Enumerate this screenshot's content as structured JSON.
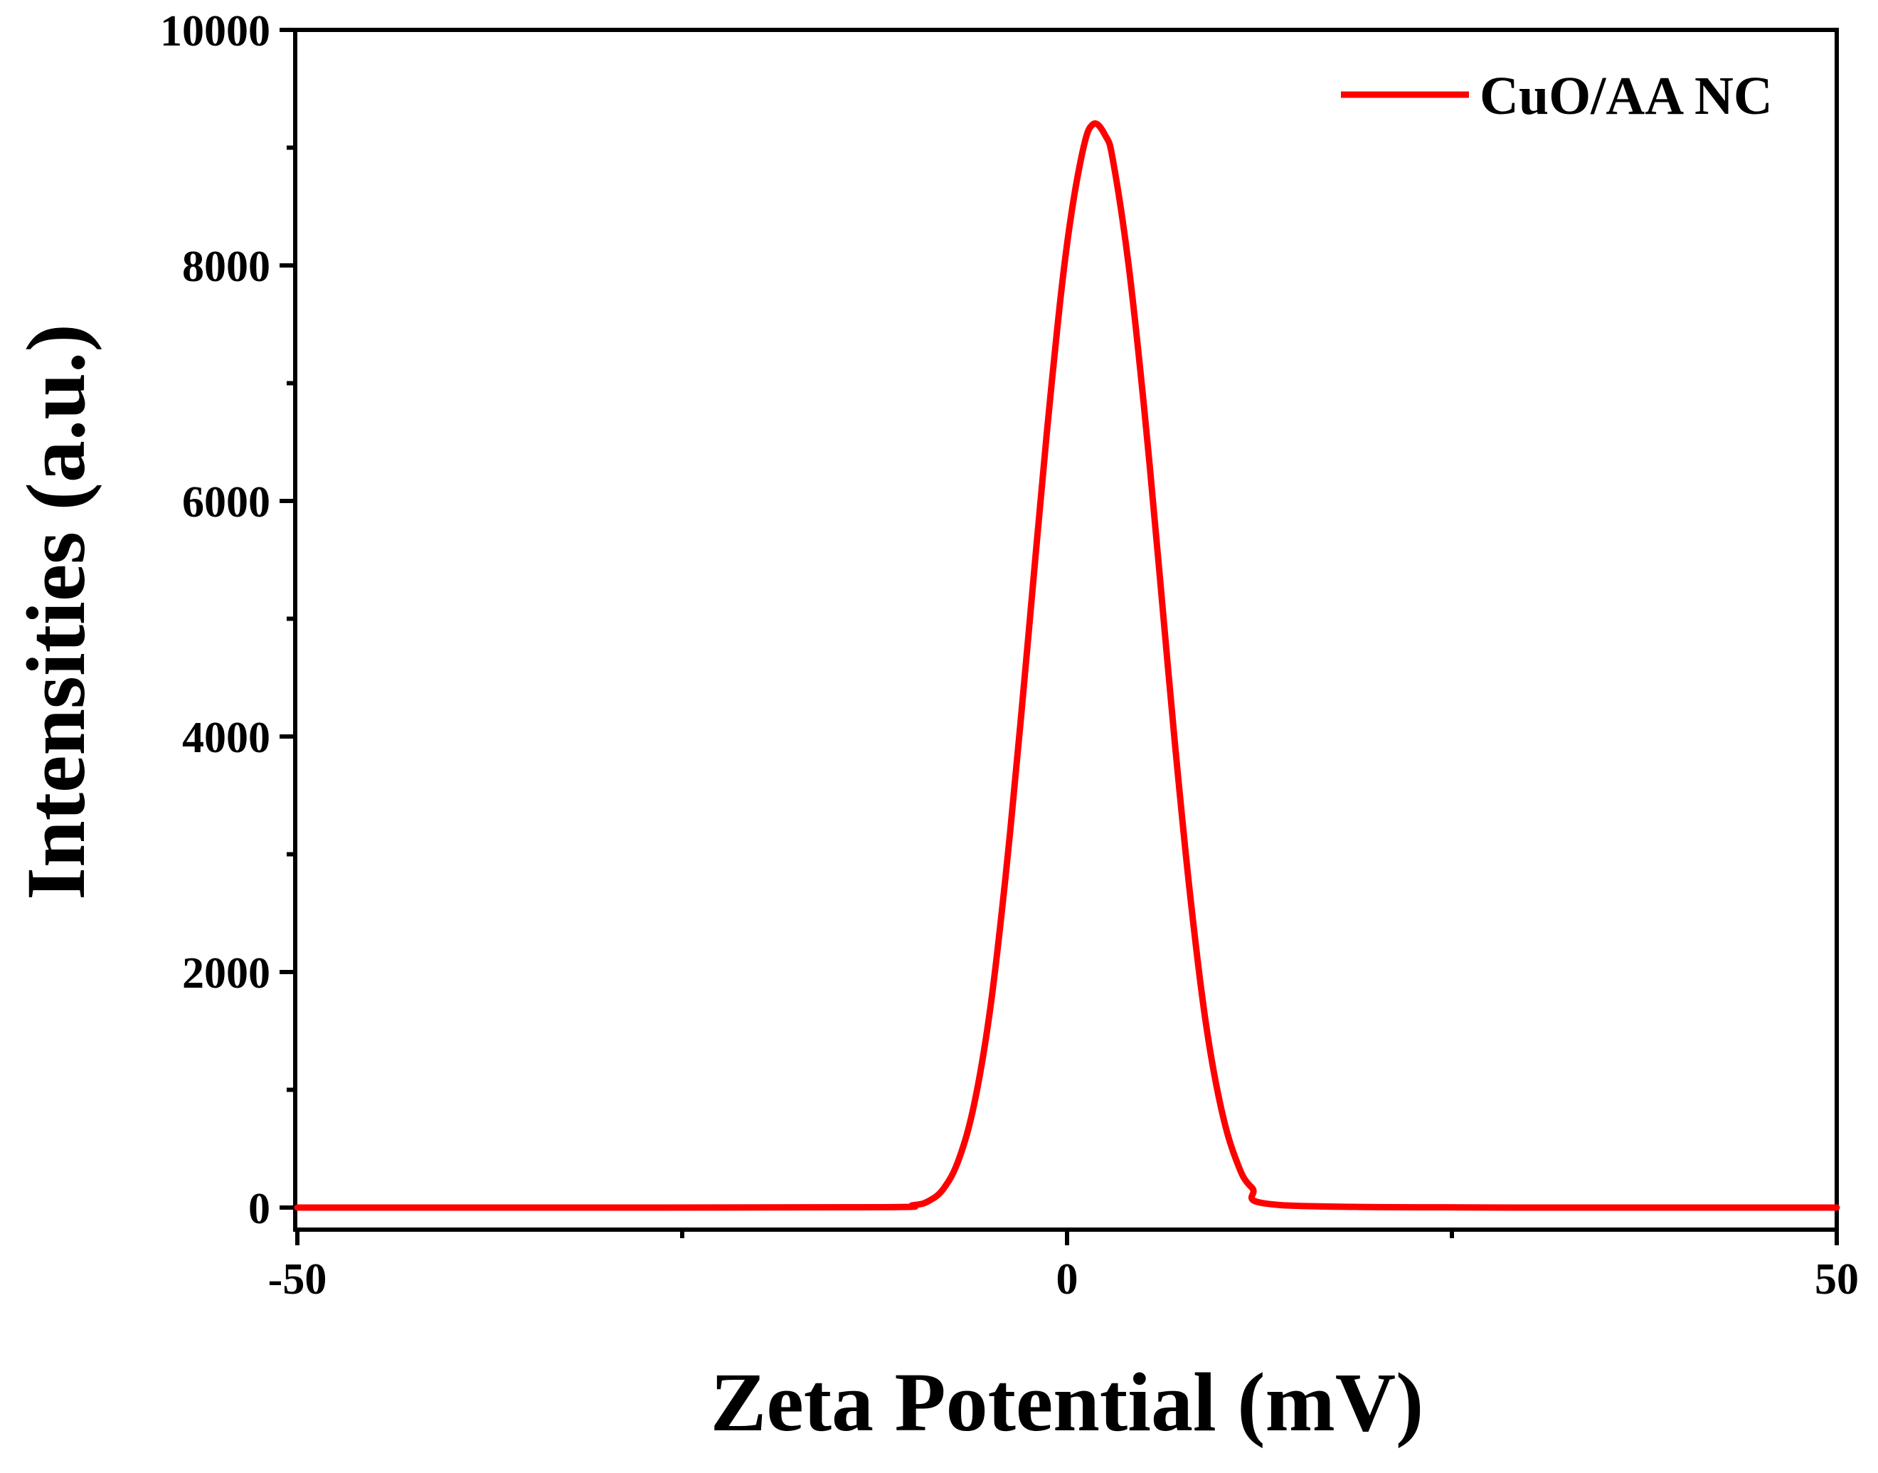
{
  "chart_data": {
    "type": "line",
    "title": "",
    "xlabel": "Zeta Potential (mV)",
    "ylabel": "Intensities (a.u.)",
    "xlim": [
      -50,
      50
    ],
    "ylim": [
      0,
      10000
    ],
    "x_ticks": [
      -50,
      0,
      50
    ],
    "x_tick_labels": [
      "-50",
      "0",
      "50"
    ],
    "x_minor_ticks": [
      -25,
      25
    ],
    "y_ticks": [
      0,
      2000,
      4000,
      6000,
      8000,
      10000
    ],
    "y_tick_labels": [
      "0",
      "2000",
      "4000",
      "6000",
      "8000",
      "10000"
    ],
    "grid": false,
    "legend_position": "top-right",
    "series": [
      {
        "name": "CuO/AA NC",
        "color": "#ff0000",
        "x": [
          -50,
          -30,
          -12,
          -10,
          -9,
          -8,
          -7,
          -6,
          -5,
          -4,
          -3,
          -2,
          -1,
          0,
          1,
          1.7,
          2.5,
          3,
          4,
          5,
          6,
          7,
          8,
          9,
          10,
          11,
          12,
          14,
          30,
          50
        ],
        "values": [
          0,
          0,
          3,
          20,
          55,
          165,
          420,
          900,
          1680,
          2800,
          4150,
          5600,
          7000,
          8180,
          8960,
          9200,
          9100,
          8880,
          8000,
          6800,
          5400,
          3950,
          2650,
          1580,
          850,
          400,
          170,
          20,
          0,
          0
        ]
      }
    ]
  }
}
